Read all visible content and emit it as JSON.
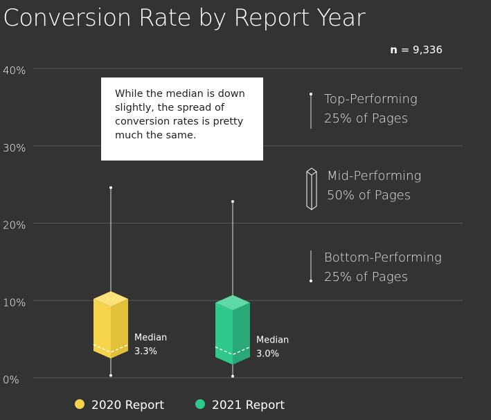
{
  "chart_data": {
    "type": "box",
    "title": "Conversion Rate by Report Year",
    "sample_size_label": "n",
    "sample_size_value": "9,336",
    "y_axis": {
      "min": 0,
      "max": 40,
      "ticks": [
        "0%",
        "10%",
        "20%",
        "30%",
        "40%"
      ],
      "tick_values": [
        0,
        10,
        20,
        30,
        40
      ]
    },
    "grid": true,
    "series": [
      {
        "name": "2020 Report",
        "color": "#f5d34a",
        "color_side": "#e3c03a",
        "color_top": "#fbe27a",
        "whisker_low": 0.3,
        "q1": 2.5,
        "median": 3.3,
        "q3": 11.2,
        "whisker_high": 24.6,
        "median_label": "Median",
        "median_value": "3.3%"
      },
      {
        "name": "2021 Report",
        "color": "#2ec98b",
        "color_side": "#2aa877",
        "color_top": "#5fd9a6",
        "whisker_low": 0.2,
        "q1": 1.7,
        "median": 3.0,
        "q3": 10.7,
        "whisker_high": 22.8,
        "median_label": "Median",
        "median_value": "3.0%"
      }
    ],
    "annotation": "While the median is down slightly, the spread of conversion rates is pretty much the same.",
    "key": {
      "top_line1": "Top-Performing",
      "top_line2": "25% of Pages",
      "mid_line1": "Mid-Performing",
      "mid_line2": "50% of Pages",
      "bottom_line1": "Bottom-Performing",
      "bottom_line2": "25% of Pages"
    },
    "legend_placement": "bottom"
  }
}
